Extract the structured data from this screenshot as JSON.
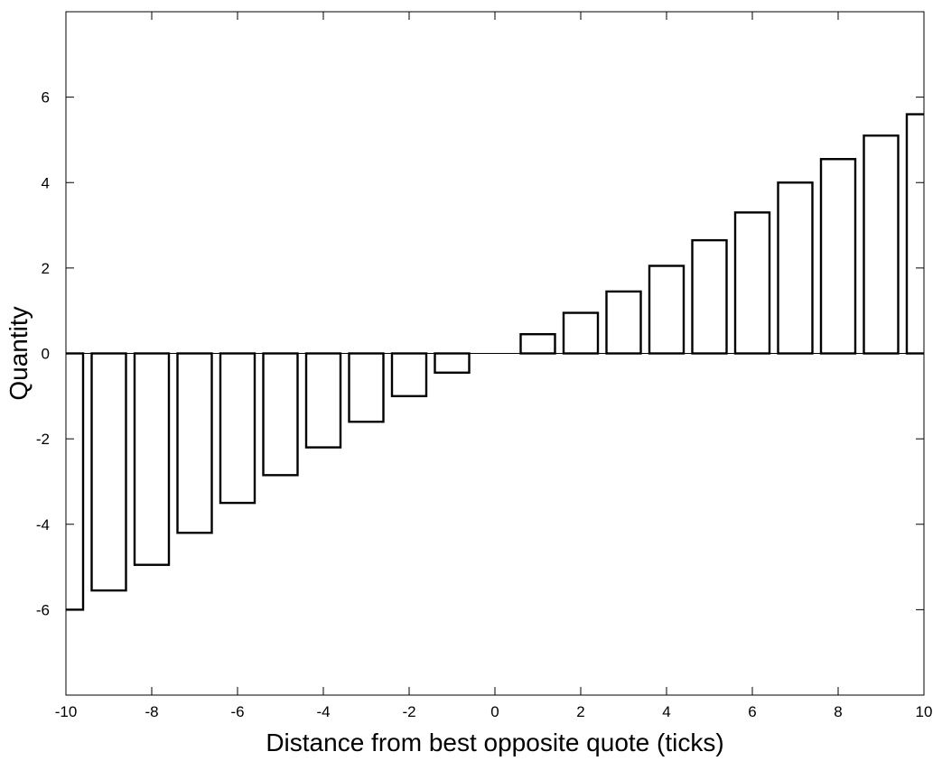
{
  "chart_data": {
    "type": "bar",
    "title": "",
    "xlabel": "Distance from best opposite quote (ticks)",
    "ylabel": "Quantity",
    "xlim": [
      -10,
      10
    ],
    "ylim": [
      -8,
      8
    ],
    "xticks": [
      -10,
      -8,
      -6,
      -4,
      -2,
      0,
      2,
      4,
      6,
      8,
      10
    ],
    "yticks": [
      -6,
      -4,
      -2,
      0,
      2,
      4,
      6
    ],
    "bar_width": 0.8,
    "grid": false,
    "bar_fill": "#ffffff",
    "bar_edge": "#000000",
    "x": [
      -10,
      -9,
      -8,
      -7,
      -6,
      -5,
      -4,
      -3,
      -2,
      -1,
      1,
      2,
      3,
      4,
      5,
      6,
      7,
      8,
      9,
      10
    ],
    "values": [
      -6.0,
      -5.55,
      -4.95,
      -4.2,
      -3.5,
      -2.85,
      -2.2,
      -1.6,
      -1.0,
      -0.45,
      0.45,
      0.95,
      1.45,
      2.05,
      2.65,
      3.3,
      4.0,
      4.55,
      5.1,
      5.6
    ]
  }
}
